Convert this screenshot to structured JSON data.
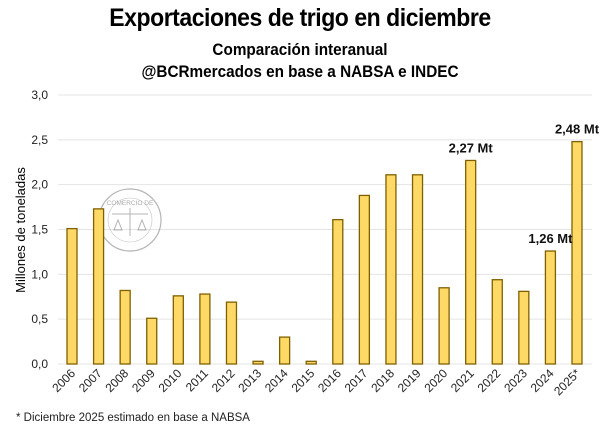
{
  "header": {
    "title": "Exportaciones de trigo en diciembre",
    "subtitle": "Comparación interanual",
    "source": "@BCRmercados en base a NABSA e INDEC"
  },
  "footnote": "* Diciembre 2025 estimado en base a NABSA",
  "watermark": "BOLSA DE COMERCIO DE ROSARIO",
  "chart_data": {
    "type": "bar",
    "title": "Exportaciones de trigo en diciembre",
    "subtitle": "Comparación interanual",
    "xlabel": "",
    "ylabel": "Millones de toneladas",
    "ylim": [
      0,
      3.0
    ],
    "yticks": [
      "0,0",
      "0,5",
      "1,0",
      "1,5",
      "2,0",
      "2,5",
      "3,0"
    ],
    "grid": true,
    "legend": "none",
    "bar_color": "#FFD966",
    "bar_edge_color": "#7F6000",
    "categories": [
      "2006",
      "2007",
      "2008",
      "2009",
      "2010",
      "2011",
      "2012",
      "2013",
      "2014",
      "2015",
      "2016",
      "2017",
      "2018",
      "2019",
      "2020",
      "2021",
      "2022",
      "2023",
      "2024",
      "2025*"
    ],
    "values": [
      1.51,
      1.73,
      0.82,
      0.51,
      0.76,
      0.78,
      0.69,
      0.03,
      0.3,
      0.03,
      1.61,
      1.88,
      2.11,
      2.11,
      0.85,
      2.27,
      0.94,
      0.81,
      1.26,
      2.48
    ],
    "annotations": [
      {
        "category": "2021",
        "text": "2,27 Mt"
      },
      {
        "category": "2024",
        "text": "1,26 Mt"
      },
      {
        "category": "2025*",
        "text": "2,48 Mt"
      }
    ]
  }
}
